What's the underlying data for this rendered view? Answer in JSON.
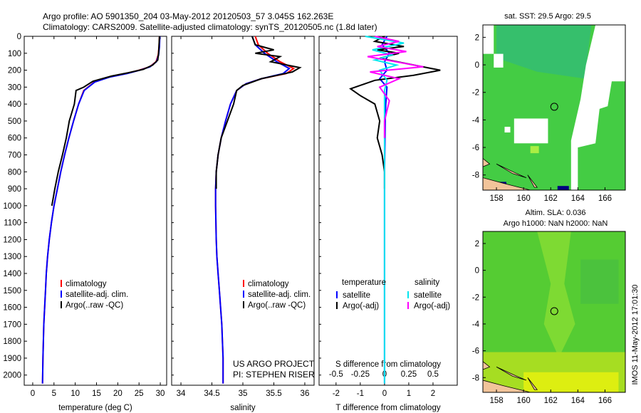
{
  "header": {
    "line1": "Argo profile: AO 5901350_204 03-May-2012 20120503_57 3.045S 162.263E",
    "line2": "Climatology: CARS2009. Satellite-adjusted climatology: synTS_20120505.nc (1.8d later)"
  },
  "side_text": "IMOS 11-May-2012 17:01:30",
  "credits": [
    "US ARGO PROJECT",
    "PI: STEPHEN RISER"
  ],
  "colors": {
    "climatology": "#ff0000",
    "satellite": "#0000ff",
    "argo": "#000000",
    "sat_salinity": "#00e5ee",
    "argo_salinity": "#ff00ff",
    "ocean": "#33cc33",
    "land": "#f2c49a",
    "no_data": "#000080"
  },
  "chart_data": [
    {
      "type": "line",
      "id": "temperature",
      "xlabel": "temperature (deg C)",
      "xticks": [
        0,
        5,
        10,
        15,
        20,
        25,
        30
      ],
      "xlim": [
        -2,
        31.5
      ],
      "ylim": [
        0,
        2060
      ],
      "yticks": [
        0,
        100,
        200,
        300,
        400,
        500,
        600,
        700,
        800,
        900,
        1000,
        1100,
        1200,
        1300,
        1400,
        1500,
        1600,
        1700,
        1800,
        1900,
        2000
      ],
      "legend": [
        "climatology",
        "satellite-adj. clim.",
        "Argo(..raw -QC)"
      ],
      "series": [
        {
          "name": "climatology",
          "color": "#ff0000",
          "x": [
            29.8,
            29.7,
            29.5,
            29.0,
            27.5,
            25.0,
            22.0,
            18.0,
            14.5,
            12.0,
            10.8,
            9.6,
            8.5,
            7.5,
            6.6,
            5.8,
            5.0,
            4.4,
            3.9,
            3.5,
            3.2,
            3.0,
            2.8,
            2.6,
            2.5,
            2.4,
            2.3
          ],
          "y": [
            0,
            60,
            110,
            150,
            180,
            200,
            220,
            240,
            270,
            320,
            400,
            500,
            600,
            700,
            800,
            900,
            1000,
            1100,
            1200,
            1300,
            1400,
            1500,
            1600,
            1700,
            1800,
            1900,
            2050
          ]
        },
        {
          "name": "satellite-adj. clim.",
          "color": "#0000ff",
          "x": [
            29.9,
            29.8,
            29.6,
            29.1,
            27.6,
            25.2,
            22.2,
            18.2,
            14.6,
            12.1,
            10.8,
            9.6,
            8.5,
            7.5,
            6.6,
            5.8,
            5.0,
            4.4,
            3.9,
            3.5,
            3.2,
            3.0,
            2.8,
            2.6,
            2.5,
            2.4,
            2.3
          ],
          "y": [
            0,
            60,
            110,
            150,
            180,
            200,
            220,
            240,
            270,
            320,
            400,
            500,
            600,
            700,
            800,
            900,
            1000,
            1100,
            1200,
            1300,
            1400,
            1500,
            1600,
            1700,
            1800,
            1900,
            2050
          ]
        },
        {
          "name": "Argo(..raw -QC)",
          "color": "#000000",
          "x": [
            29.8,
            29.7,
            29.6,
            29.4,
            28.2,
            26.0,
            22.5,
            18.5,
            14.2,
            12.0,
            10.2,
            9.8,
            8.6,
            7.9,
            7.0,
            6.0,
            5.2,
            4.5
          ],
          "y": [
            0,
            50,
            100,
            140,
            170,
            195,
            215,
            235,
            265,
            300,
            320,
            400,
            500,
            600,
            700,
            800,
            900,
            1000
          ]
        }
      ]
    },
    {
      "type": "line",
      "id": "salinity",
      "xlabel": "salinity",
      "xticks": [
        34,
        34.5,
        35,
        35.5,
        36
      ],
      "xtick_labels": [
        "34",
        "34.5",
        "35",
        "35.5",
        "36"
      ],
      "xlim": [
        33.85,
        36.15
      ],
      "ylim": [
        0,
        2060
      ],
      "legend": [
        "climatology",
        "satellite-adj. clim.",
        "Argo(..raw -QC)"
      ],
      "series": [
        {
          "name": "climatology",
          "color": "#ff0000",
          "x": [
            35.2,
            35.25,
            35.4,
            35.6,
            35.82,
            35.7,
            35.3,
            35.05,
            34.9,
            34.8,
            34.72,
            34.65,
            34.6,
            34.57,
            34.56,
            34.56,
            34.57,
            34.58,
            34.6,
            34.62,
            34.64,
            34.66,
            34.67,
            34.68,
            34.68,
            34.68
          ],
          "y": [
            0,
            50,
            100,
            150,
            190,
            220,
            250,
            280,
            320,
            400,
            500,
            600,
            700,
            800,
            900,
            1000,
            1200,
            1300,
            1400,
            1500,
            1600,
            1700,
            1800,
            1900,
            2000,
            2050
          ]
        },
        {
          "name": "satellite-adj. clim.",
          "color": "#0000ff",
          "x": [
            35.15,
            35.2,
            35.35,
            35.55,
            35.75,
            35.65,
            35.3,
            35.05,
            34.9,
            34.8,
            34.72,
            34.65,
            34.6,
            34.57,
            34.56,
            34.56,
            34.57,
            34.58,
            34.6,
            34.62,
            34.64,
            34.66,
            34.67,
            34.68,
            34.68,
            34.68
          ],
          "y": [
            0,
            50,
            100,
            150,
            190,
            220,
            250,
            280,
            320,
            400,
            500,
            600,
            700,
            800,
            900,
            1000,
            1200,
            1300,
            1400,
            1500,
            1600,
            1700,
            1800,
            1900,
            2000,
            2050
          ]
        },
        {
          "name": "Argo(..raw -QC)",
          "color": "#000000",
          "x": [
            35.15,
            35.2,
            35.5,
            35.2,
            35.6,
            35.45,
            35.92,
            35.8,
            35.3,
            35.0,
            34.9,
            34.85,
            34.75,
            34.65,
            34.6,
            34.57,
            34.57
          ],
          "y": [
            0,
            50,
            80,
            100,
            120,
            150,
            185,
            210,
            250,
            290,
            320,
            400,
            500,
            600,
            700,
            800,
            900
          ]
        }
      ]
    },
    {
      "type": "line",
      "id": "differences",
      "xlabel": "T difference from climatology",
      "xticks": [
        -2,
        -1,
        0,
        1,
        2
      ],
      "xlim": [
        -2.7,
        3.0
      ],
      "top_axis_label": "S difference from climatology",
      "top_ticks": [
        -0.5,
        -0.25,
        0,
        0.25,
        0.5
      ],
      "top_tick_labels": [
        "-0.5",
        "-0.25",
        "0",
        "0.25",
        "0.5"
      ],
      "ylim": [
        0,
        2060
      ],
      "legend_headers": [
        "temperature",
        "salinity"
      ],
      "legend": [
        "satellite",
        "Argo(-adj)",
        "satellite",
        "Argo(-adj)"
      ],
      "series": [
        {
          "name": "satellite",
          "color": "#0000ff",
          "x": [
            0.1,
            -0.1,
            0.2,
            0.0,
            0.1,
            -0.2,
            0.1,
            0.05,
            0.03,
            0.02,
            0.01,
            0.0,
            0.0,
            0.0,
            0.0,
            0.0,
            0.0,
            0.0
          ],
          "y": [
            0,
            50,
            100,
            150,
            200,
            250,
            300,
            400,
            500,
            600,
            700,
            800,
            1000,
            1200,
            1400,
            1600,
            1800,
            2050
          ]
        },
        {
          "name": "Argo(-adj)",
          "color": "#000000",
          "x": [
            0.0,
            -0.4,
            0.8,
            -0.3,
            0.6,
            -0.2,
            2.3,
            1.2,
            -0.4,
            -1.4,
            -1.0,
            -0.4,
            -0.2,
            -0.3,
            -0.1,
            0.0,
            0.0,
            0.0
          ],
          "y": [
            0,
            30,
            60,
            80,
            100,
            130,
            200,
            230,
            260,
            310,
            350,
            400,
            500,
            600,
            700,
            800,
            850,
            900
          ]
        },
        {
          "name": "satellite",
          "color": "#00e5ee",
          "x": [
            -0.8,
            0.8,
            -0.5,
            0.3,
            -0.4,
            0.5,
            -0.2,
            0.1,
            0.0,
            0.0,
            0.0,
            0.0,
            0.0,
            0.0,
            0.0,
            0.0,
            0.0
          ],
          "y": [
            0,
            40,
            80,
            110,
            140,
            170,
            200,
            260,
            320,
            400,
            600,
            800,
            1000,
            1300,
            1600,
            1900,
            2050
          ]
        },
        {
          "name": "Argo(-adj)",
          "color": "#ff00ff",
          "x": [
            -0.4,
            0.6,
            -0.3,
            0.9,
            -0.7,
            1.6,
            -0.6,
            0.6,
            -0.2,
            0.2,
            0.0,
            0.0
          ],
          "y": [
            0,
            30,
            60,
            90,
            120,
            180,
            210,
            250,
            300,
            380,
            500,
            600
          ]
        }
      ]
    },
    {
      "type": "heatmap",
      "id": "sst_map",
      "title": "sat. SST: 29.5 Argo: 29.5",
      "xticks": [
        158,
        160,
        162,
        164,
        166
      ],
      "yticks": [
        2,
        0,
        -2,
        -4,
        -6,
        -8
      ],
      "xlim": [
        157,
        167.5
      ],
      "ylim": [
        -9.1,
        2.9
      ],
      "argo_position": [
        162.263,
        -3.045
      ]
    },
    {
      "type": "heatmap",
      "id": "sla_map",
      "title": "Altim. SLA: 0.036",
      "subtitle": "Argo h1000: NaN h2000: NaN",
      "xticks": [
        158,
        160,
        162,
        164,
        166
      ],
      "yticks": [
        2,
        0,
        -2,
        -4,
        -6,
        -8
      ],
      "xlim": [
        157,
        167.5
      ],
      "ylim": [
        -9.1,
        2.9
      ],
      "argo_position": [
        162.263,
        -3.045
      ]
    }
  ]
}
